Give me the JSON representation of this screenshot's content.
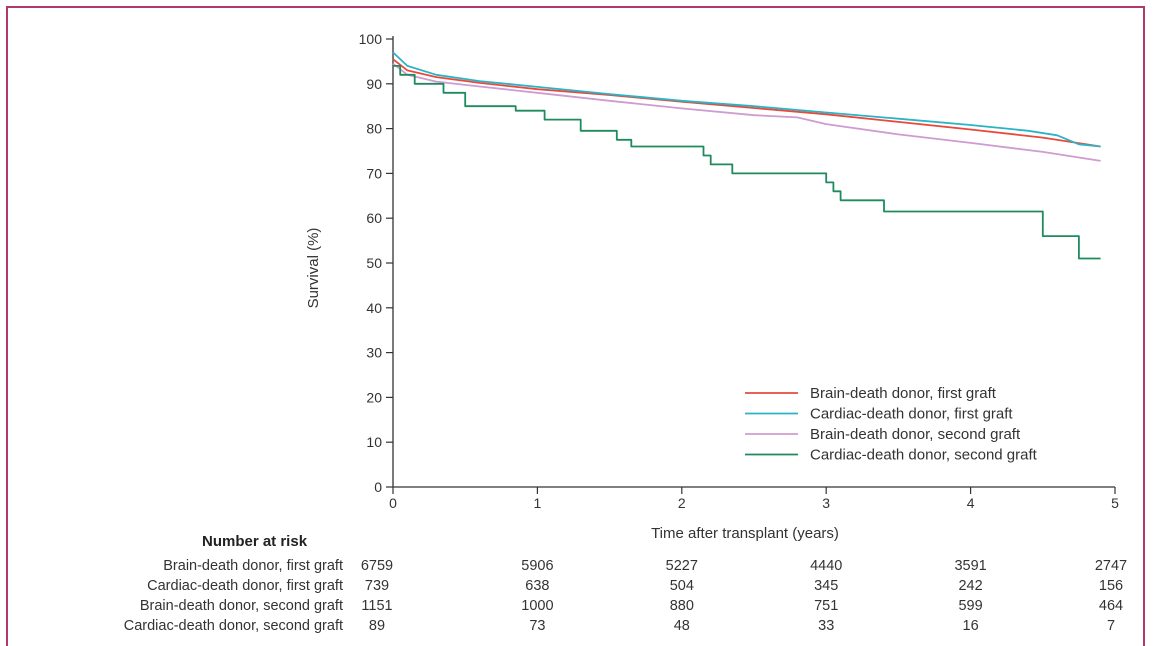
{
  "chart_data": {
    "type": "line",
    "xlabel": "Time after transplant (years)",
    "ylabel": "Survival (%)",
    "xlim": [
      0,
      5
    ],
    "ylim": [
      0,
      100
    ],
    "xticks": [
      0,
      1,
      2,
      3,
      4,
      5
    ],
    "yticks": [
      0,
      10,
      20,
      30,
      40,
      50,
      60,
      70,
      80,
      90,
      100
    ],
    "grid": false,
    "legend_position": "bottom-right",
    "series": [
      {
        "name": "Brain-death donor, first graft",
        "color": "#e8493c",
        "points": [
          [
            0,
            95.5
          ],
          [
            0.1,
            93
          ],
          [
            0.3,
            91.5
          ],
          [
            0.6,
            90.2
          ],
          [
            1,
            88.8
          ],
          [
            1.5,
            87.5
          ],
          [
            2,
            86
          ],
          [
            2.5,
            84.6
          ],
          [
            3,
            83.2
          ],
          [
            3.5,
            81.5
          ],
          [
            4,
            79.8
          ],
          [
            4.5,
            78
          ],
          [
            4.9,
            76
          ]
        ]
      },
      {
        "name": "Cardiac-death donor, first graft",
        "color": "#2bb3c6",
        "points": [
          [
            0,
            97
          ],
          [
            0.1,
            94
          ],
          [
            0.3,
            92
          ],
          [
            0.6,
            90.6
          ],
          [
            1,
            89.3
          ],
          [
            1.5,
            87.7
          ],
          [
            2,
            86.2
          ],
          [
            2.5,
            85
          ],
          [
            3,
            83.6
          ],
          [
            3.5,
            82.2
          ],
          [
            4,
            80.8
          ],
          [
            4.4,
            79.5
          ],
          [
            4.6,
            78.5
          ],
          [
            4.75,
            76.5
          ],
          [
            4.9,
            76
          ]
        ]
      },
      {
        "name": "Brain-death donor, second graft",
        "color": "#cf9bd0",
        "points": [
          [
            0,
            94.5
          ],
          [
            0.1,
            92
          ],
          [
            0.3,
            90.5
          ],
          [
            0.6,
            89.4
          ],
          [
            1,
            88
          ],
          [
            1.5,
            86.2
          ],
          [
            2,
            84.5
          ],
          [
            2.5,
            83
          ],
          [
            2.8,
            82.5
          ],
          [
            3,
            81
          ],
          [
            3.5,
            78.7
          ],
          [
            4,
            76.8
          ],
          [
            4.5,
            74.8
          ],
          [
            4.9,
            72.8
          ]
        ]
      },
      {
        "name": "Cardiac-death donor, second graft",
        "color": "#1f8a5e",
        "step": true,
        "points": [
          [
            0,
            94
          ],
          [
            0.05,
            92
          ],
          [
            0.15,
            90
          ],
          [
            0.35,
            88
          ],
          [
            0.5,
            85
          ],
          [
            0.85,
            84
          ],
          [
            1.05,
            82
          ],
          [
            1.3,
            79.5
          ],
          [
            1.55,
            77.5
          ],
          [
            1.65,
            76
          ],
          [
            2.15,
            74
          ],
          [
            2.2,
            72
          ],
          [
            2.35,
            70
          ],
          [
            3,
            68
          ],
          [
            3.05,
            66
          ],
          [
            3.1,
            64
          ],
          [
            3.4,
            61.5
          ],
          [
            4.5,
            56
          ],
          [
            4.75,
            51
          ],
          [
            4.9,
            51
          ]
        ]
      }
    ]
  },
  "risk_table": {
    "title": "Number at risk",
    "rows": [
      {
        "label": "Brain-death donor, first graft",
        "values": [
          "6759",
          "5906",
          "5227",
          "4440",
          "3591",
          "2747"
        ]
      },
      {
        "label": "Cardiac-death donor, first graft",
        "values": [
          "739",
          "638",
          "504",
          "345",
          "242",
          "156"
        ]
      },
      {
        "label": "Brain-death donor, second graft",
        "values": [
          "1151",
          "1000",
          "880",
          "751",
          "599",
          "464"
        ]
      },
      {
        "label": "Cardiac-death donor, second graft",
        "values": [
          "89",
          "73",
          "48",
          "33",
          "16",
          "7"
        ]
      }
    ]
  }
}
